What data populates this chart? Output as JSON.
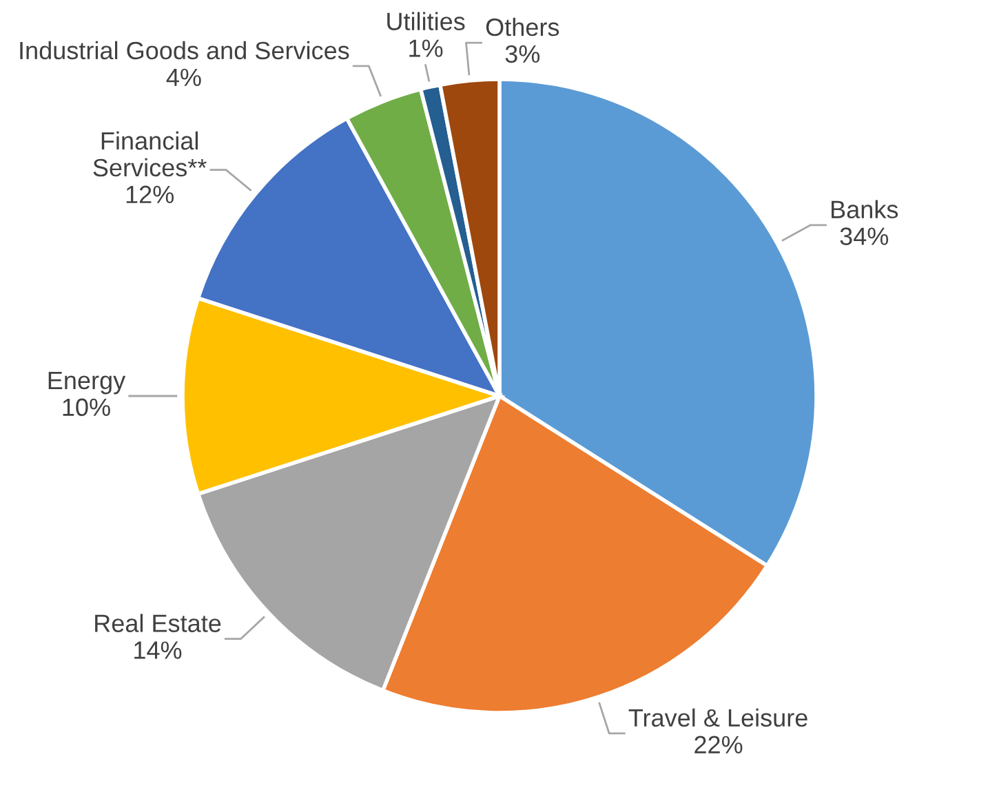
{
  "chart_data": {
    "type": "pie",
    "categories": [
      "Banks",
      "Travel & Leisure",
      "Real Estate",
      "Energy",
      "Financial Services**",
      "Industrial Goods and Services",
      "Utilities",
      "Others"
    ],
    "values": [
      34,
      22,
      14,
      10,
      12,
      4,
      1,
      3
    ],
    "value_labels": [
      "34%",
      "22%",
      "14%",
      "10%",
      "12%",
      "4%",
      "1%",
      "3%"
    ],
    "colors": [
      "#5b9bd5",
      "#ed7d31",
      "#a5a5a5",
      "#ffc000",
      "#4472c4",
      "#70ad47",
      "#255e91",
      "#9e480e"
    ],
    "legend": false
  }
}
